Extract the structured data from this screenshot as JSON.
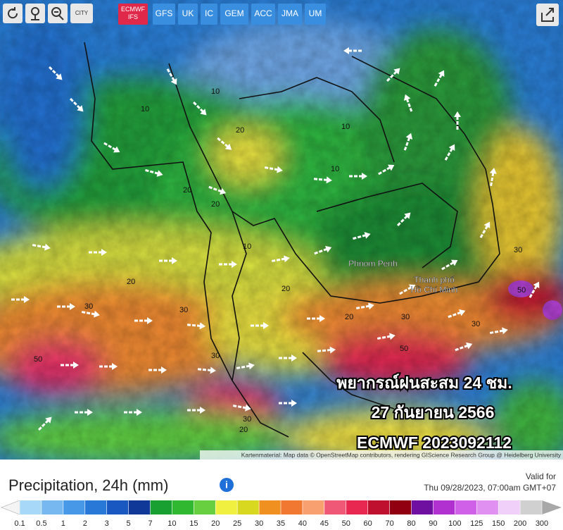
{
  "toolbar": {
    "city_button": "CITY",
    "models": [
      "ECMWF IFS",
      "GFS",
      "UK",
      "IC",
      "GEM",
      "ACC",
      "JMA",
      "UM"
    ],
    "active_model": 0
  },
  "map": {
    "places": [
      "Phnom Penh",
      "Thanh phố",
      "Hồ Chí Minh"
    ],
    "contour_labels": [
      10,
      10,
      10,
      20,
      20,
      20,
      10,
      20,
      30,
      30,
      20,
      30,
      50,
      30,
      50,
      30,
      20,
      30,
      50,
      30,
      20,
      10
    ],
    "overlay": [
      "พยากรณ์ฝนสะสม 24 ชม.",
      "27 กันยายน 2566",
      "ECMWF 2023092112"
    ],
    "attribution": "Kartenmaterial: Map data © OpenStreetMap contributors, rendering GIScience Research Group @ Heidelberg University"
  },
  "legend": {
    "title": "Precipitation, 24h (mm)",
    "valid_label": "Valid for",
    "valid_time": "Thu 09/28/2023, 07:00am GMT+07",
    "scale": [
      0.1,
      0.5,
      1,
      2,
      3,
      5,
      7,
      10,
      15,
      20,
      25,
      30,
      35,
      40,
      45,
      50,
      60,
      70,
      80,
      90,
      100,
      125,
      150,
      200,
      300
    ],
    "colors": [
      "#a8d8f8",
      "#78b8f0",
      "#4898e8",
      "#2878d8",
      "#1858c0",
      "#103898",
      "#18a030",
      "#30b830",
      "#68d040",
      "#f0f040",
      "#d8d820",
      "#f09020",
      "#f07830",
      "#f8a070",
      "#f05878",
      "#e82850",
      "#c01030",
      "#900010",
      "#7010a0",
      "#b030d0",
      "#d060e8",
      "#e090f0",
      "#f0d0f8",
      "#d0d0d0"
    ],
    "low_color": "#f4f4f4",
    "high_color": "#a8a8a8"
  }
}
